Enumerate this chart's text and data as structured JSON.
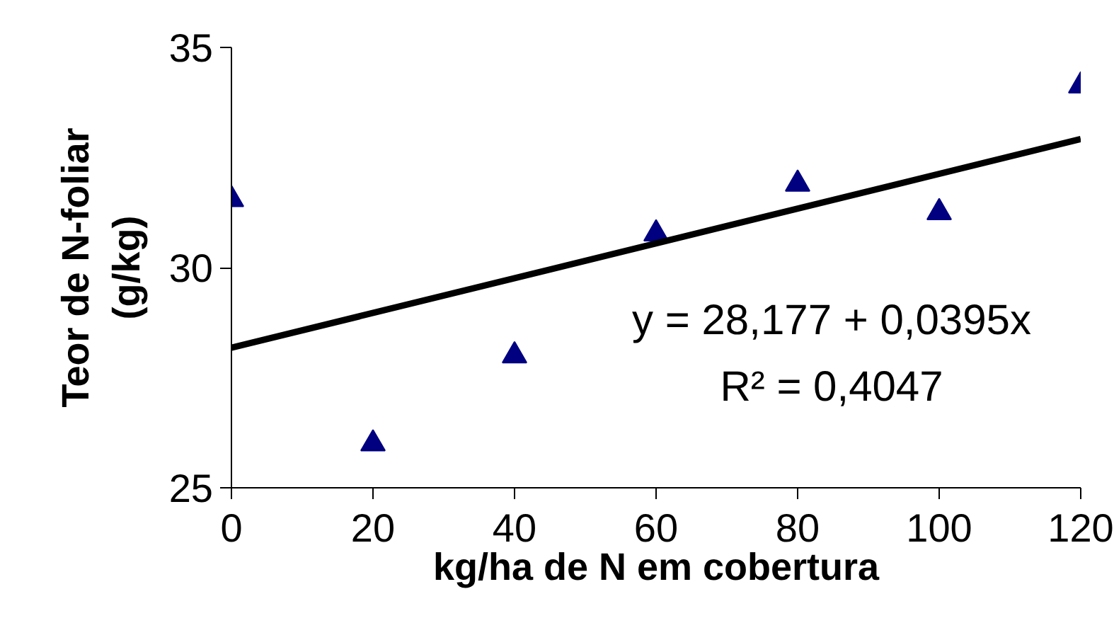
{
  "chart_data": {
    "type": "scatter",
    "xlabel": "kg/ha de N em cobertura",
    "ylabel": "Teor de N-foliar\n(g/kg)",
    "xlim": [
      0,
      120
    ],
    "xticks": [
      0,
      20,
      40,
      60,
      80,
      100,
      120
    ],
    "ylim": [
      25,
      35
    ],
    "yticks": [
      25,
      30,
      35
    ],
    "grid": false,
    "series": [
      {
        "color": "#000080",
        "marker": "triangle",
        "x": [
          0,
          20,
          40,
          60,
          80,
          100,
          120
        ],
        "values": [
          31.55,
          26.0,
          28.0,
          30.77,
          31.9,
          31.25,
          34.13
        ]
      },
      {
        "type": "line",
        "color": "#000000",
        "line_style": "solid",
        "marker": "none",
        "x": [
          0,
          120
        ],
        "values": [
          28.18,
          32.92
        ]
      }
    ],
    "annotations": [
      "y = 28,177 + 0,0395x",
      "R² = 0,4047"
    ]
  }
}
